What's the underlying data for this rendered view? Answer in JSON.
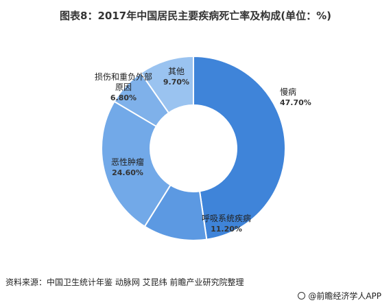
{
  "title": "图表8：2017年中国居民主要疾病死亡率及构成(单位：%)",
  "source": "资料来源：中国卫生统计年鉴 动脉网 艾昆纬 前瞻产业研究院整理",
  "credit": "@前瞻经济学人APP",
  "chart_data": {
    "type": "pie",
    "title": "图表8：2017年中国居民主要疾病死亡率及构成(单位：%)",
    "donut": true,
    "categories": [
      "慢病",
      "呼吸系统疾病",
      "恶性肿瘤",
      "损伤和重负外部原因",
      "其他"
    ],
    "values": [
      47.7,
      11.2,
      24.6,
      6.8,
      9.7
    ],
    "value_labels": [
      "47.70%",
      "11.20%",
      "24.60%",
      "6.80%",
      "9.70%"
    ],
    "colors": [
      "#3f84d9",
      "#5c99e2",
      "#72a9e8",
      "#7fb1ea",
      "#9ac3f0"
    ]
  }
}
